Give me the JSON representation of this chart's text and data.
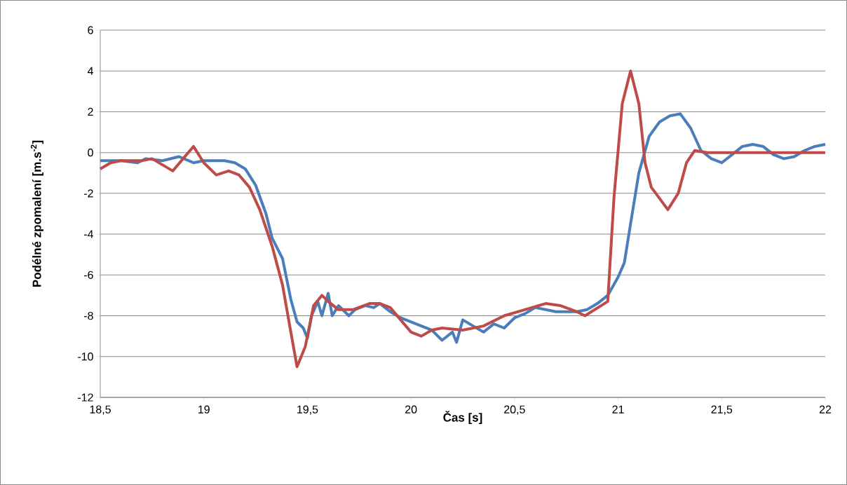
{
  "chart_data": {
    "type": "line",
    "xlabel": "Čas [s]",
    "ylabel": "Podélné zpomalení [m.s$^{-2}$]",
    "xlim": [
      18.5,
      22
    ],
    "xticks": [
      {
        "value": 18.5,
        "label": "18,5"
      },
      19,
      {
        "value": 19.5,
        "label": "19,5"
      },
      20,
      {
        "value": 20.5,
        "label": "20,5"
      },
      21,
      {
        "value": 21.5,
        "label": "21,5"
      },
      22
    ],
    "ylim": [
      -12,
      6
    ],
    "yticks": [
      -12,
      -10,
      -8,
      -6,
      -4,
      -2,
      0,
      2,
      4,
      6
    ],
    "grid": "y",
    "marker": "none",
    "line_style": "solid",
    "series": [
      {
        "color": "#4a7ebb",
        "x": [
          18.5,
          18.6,
          18.68,
          18.72,
          18.8,
          18.88,
          18.95,
          19.0,
          19.05,
          19.1,
          19.15,
          19.2,
          19.25,
          19.3,
          19.33,
          19.38,
          19.42,
          19.45,
          19.48,
          19.5,
          19.52,
          19.55,
          19.57,
          19.6,
          19.62,
          19.65,
          19.7,
          19.73,
          19.78,
          19.82,
          19.85,
          19.9,
          19.95,
          20.0,
          20.05,
          20.1,
          20.15,
          20.2,
          20.22,
          20.25,
          20.3,
          20.35,
          20.4,
          20.45,
          20.5,
          20.55,
          20.6,
          20.65,
          20.7,
          20.75,
          20.8,
          20.85,
          20.9,
          20.95,
          21.0,
          21.03,
          21.06,
          21.1,
          21.15,
          21.2,
          21.25,
          21.3,
          21.35,
          21.4,
          21.45,
          21.5,
          21.55,
          21.6,
          21.65,
          21.7,
          21.75,
          21.8,
          21.85,
          21.9,
          21.95,
          22.0
        ],
        "values": [
          -0.4,
          -0.4,
          -0.5,
          -0.3,
          -0.4,
          -0.2,
          -0.5,
          -0.4,
          -0.4,
          -0.4,
          -0.5,
          -0.8,
          -1.6,
          -3.0,
          -4.2,
          -5.2,
          -7.2,
          -8.3,
          -8.6,
          -9.1,
          -8.0,
          -7.3,
          -8.0,
          -6.9,
          -8.0,
          -7.5,
          -8.0,
          -7.7,
          -7.5,
          -7.6,
          -7.4,
          -7.8,
          -8.1,
          -8.3,
          -8.5,
          -8.7,
          -9.2,
          -8.8,
          -9.3,
          -8.2,
          -8.5,
          -8.8,
          -8.4,
          -8.6,
          -8.1,
          -7.9,
          -7.6,
          -7.7,
          -7.8,
          -7.8,
          -7.8,
          -7.7,
          -7.4,
          -7.0,
          -6.1,
          -5.4,
          -3.5,
          -1.0,
          0.8,
          1.5,
          1.8,
          1.9,
          1.2,
          0.1,
          -0.3,
          -0.5,
          -0.1,
          0.3,
          0.4,
          0.3,
          -0.1,
          -0.3,
          -0.2,
          0.1,
          0.3,
          0.4
        ]
      },
      {
        "color": "#be4b48",
        "x": [
          18.5,
          18.55,
          18.6,
          18.7,
          18.75,
          18.8,
          18.85,
          18.9,
          18.95,
          19.0,
          19.06,
          19.12,
          19.17,
          19.22,
          19.27,
          19.33,
          19.38,
          19.42,
          19.45,
          19.49,
          19.53,
          19.57,
          19.6,
          19.65,
          19.72,
          19.8,
          19.85,
          19.9,
          19.95,
          20.0,
          20.05,
          20.1,
          20.15,
          20.25,
          20.35,
          20.45,
          20.55,
          20.65,
          20.72,
          20.8,
          20.84,
          20.95,
          20.98,
          21.02,
          21.06,
          21.1,
          21.13,
          21.16,
          21.24,
          21.29,
          21.33,
          21.37,
          21.43,
          21.5,
          21.75,
          22.0
        ],
        "values": [
          -0.8,
          -0.5,
          -0.4,
          -0.4,
          -0.3,
          -0.6,
          -0.9,
          -0.3,
          0.3,
          -0.5,
          -1.1,
          -0.9,
          -1.1,
          -1.7,
          -2.8,
          -4.6,
          -6.5,
          -8.8,
          -10.5,
          -9.5,
          -7.5,
          -7.0,
          -7.3,
          -7.7,
          -7.7,
          -7.4,
          -7.4,
          -7.6,
          -8.2,
          -8.8,
          -9.0,
          -8.7,
          -8.6,
          -8.7,
          -8.5,
          -8.0,
          -7.7,
          -7.4,
          -7.5,
          -7.8,
          -8.0,
          -7.3,
          -2.2,
          2.4,
          4.0,
          2.4,
          -0.5,
          -1.7,
          -2.8,
          -2.0,
          -0.5,
          0.1,
          0.0,
          0.0,
          0.0,
          0.0
        ]
      }
    ]
  }
}
